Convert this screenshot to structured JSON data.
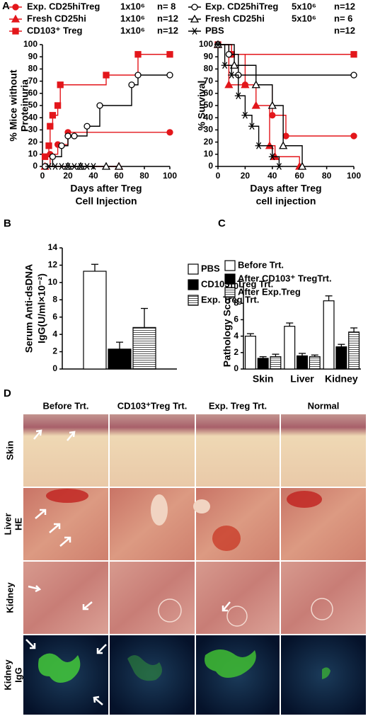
{
  "panel_labels": [
    "A",
    "B",
    "C",
    "D"
  ],
  "chart_data": [
    {
      "type": "line",
      "step": true,
      "ylabel": [
        "% Mice without",
        "Proteinuria"
      ],
      "xlabel": [
        "Days after Treg",
        "Cell Injection"
      ],
      "xlim": [
        0,
        100
      ],
      "xticks": [
        0,
        20,
        40,
        60,
        80,
        100
      ],
      "ylim": [
        0,
        100
      ],
      "yticks": [
        0,
        10,
        20,
        30,
        40,
        50,
        60,
        70,
        80,
        90,
        100
      ],
      "series": [
        {
          "name": "Exp. CD25hiTreg",
          "dose": "1x10⁶",
          "n": "n= 8",
          "color": "#e3161b",
          "marker": "circle",
          "x": [
            2,
            6,
            12,
            20,
            100
          ],
          "values": [
            0,
            10,
            18,
            28,
            28
          ]
        },
        {
          "name": "Fresh CD25hi",
          "dose": "1x10⁶",
          "n": "n=12",
          "color": "#e3161b",
          "marker": "triangle",
          "x": [
            2,
            60
          ],
          "values": [
            0,
            0
          ]
        },
        {
          "name": "CD103⁺ Treg",
          "dose": "1x10⁶",
          "n": "n=12",
          "color": "#e3161b",
          "marker": "square",
          "x": [
            2,
            5,
            6,
            8,
            12,
            14,
            50,
            75,
            100
          ],
          "values": [
            8,
            17,
            33,
            42,
            50,
            67,
            75,
            92,
            92
          ]
        },
        {
          "name": "Exp. CD25hiTreg",
          "dose": "5x10⁶",
          "n": "n=12",
          "color": "#000000",
          "marker": "circle-open",
          "x": [
            2,
            8,
            15,
            20,
            25,
            35,
            45,
            70,
            75,
            100
          ],
          "values": [
            0,
            8,
            17,
            25,
            25,
            33,
            50,
            67,
            75,
            75
          ]
        },
        {
          "name": "Fresh CD25hi",
          "dose": "5x10⁶",
          "n": "n= 6",
          "color": "#000000",
          "marker": "triangle-open",
          "x": [
            20,
            30,
            50,
            60
          ],
          "values": [
            0,
            0,
            0,
            0
          ]
        },
        {
          "name": "PBS",
          "n": "n=12",
          "color": "#000000",
          "marker": "star",
          "x": [
            5,
            10,
            15,
            20,
            25,
            30,
            35,
            40
          ],
          "values": [
            0,
            0,
            0,
            0,
            0,
            0,
            0,
            0
          ]
        }
      ]
    },
    {
      "type": "line",
      "step": true,
      "ylabel": [
        "% Survival"
      ],
      "xlabel": [
        "Days after Treg",
        "cell injection"
      ],
      "xlim": [
        0,
        100
      ],
      "xticks": [
        0,
        20,
        40,
        60,
        80,
        100
      ],
      "ylim": [
        0,
        100
      ],
      "yticks": [
        0,
        10,
        20,
        30,
        40,
        50,
        60,
        70,
        80,
        90,
        100
      ],
      "series": [
        {
          "color": "#e3161b",
          "marker": "circle",
          "x": [
            0,
            10,
            20,
            40,
            50,
            100
          ],
          "values": [
            100,
            92,
            67,
            42,
            25,
            25
          ]
        },
        {
          "color": "#e3161b",
          "marker": "triangle",
          "x": [
            0,
            8,
            20,
            28,
            38,
            42,
            60
          ],
          "values": [
            100,
            67,
            67,
            50,
            17,
            8,
            0
          ]
        },
        {
          "color": "#e3161b",
          "marker": "square",
          "x": [
            0,
            10,
            100
          ],
          "values": [
            100,
            92,
            92
          ]
        },
        {
          "color": "#000000",
          "marker": "circle-open",
          "x": [
            0,
            8,
            15,
            100
          ],
          "values": [
            100,
            92,
            75,
            75
          ]
        },
        {
          "color": "#000000",
          "marker": "triangle-open",
          "x": [
            0,
            12,
            28,
            40,
            48,
            62
          ],
          "values": [
            100,
            83,
            67,
            50,
            17,
            0
          ]
        },
        {
          "color": "#000000",
          "marker": "star",
          "x": [
            0,
            5,
            10,
            15,
            20,
            25,
            30,
            40,
            45
          ],
          "values": [
            100,
            83,
            75,
            58,
            42,
            33,
            17,
            8,
            0
          ]
        }
      ]
    },
    {
      "type": "bar",
      "legend": "right",
      "ylabel": [
        "Serum Anti-dsDNA",
        "IgG(U/ml×10⁻²)"
      ],
      "ylim": [
        0,
        14
      ],
      "yticks": [
        0,
        2,
        4,
        6,
        8,
        10,
        12,
        14
      ],
      "series": [
        {
          "name": "PBS",
          "color": "white",
          "values": [
            11.3
          ],
          "errors": [
            0.8
          ]
        },
        {
          "name": "CD103⁺ Treg Trt.",
          "color": "black",
          "values": [
            2.3
          ],
          "errors": [
            0.8
          ]
        },
        {
          "name": "Exp. Treg Trt.",
          "color": "hlines",
          "values": [
            4.8
          ],
          "errors": [
            2.2
          ]
        }
      ]
    },
    {
      "type": "bar",
      "legend": "top",
      "ylabel": [
        "Pathology Score"
      ],
      "categories": [
        "Skin",
        "Liver",
        "Kidney"
      ],
      "ylim": [
        0,
        10
      ],
      "yticks": [
        0,
        2,
        4,
        6,
        8,
        10
      ],
      "series": [
        {
          "name": "Before Trt.",
          "color": "white",
          "values": [
            4.0,
            5.2,
            8.3
          ],
          "errors": [
            0.3,
            0.4,
            0.6
          ]
        },
        {
          "name": "After CD103⁺ TregTrt.",
          "color": "black",
          "values": [
            1.3,
            1.6,
            2.7
          ],
          "errors": [
            0.2,
            0.3,
            0.3
          ]
        },
        {
          "name": "After Exp.Treg",
          "color": "hlines",
          "values": [
            1.5,
            1.5,
            4.5
          ],
          "errors": [
            0.3,
            0.2,
            0.5
          ]
        }
      ]
    }
  ],
  "histology": {
    "columns": [
      "Before Trt.",
      "CD103⁺Treg Trt.",
      "Exp. Treg Trt.",
      "Normal"
    ],
    "rows": [
      [
        "Skin"
      ],
      [
        "Liver",
        "HE"
      ],
      [
        "Kidney"
      ],
      [
        "Kidney",
        "IgG"
      ]
    ]
  }
}
